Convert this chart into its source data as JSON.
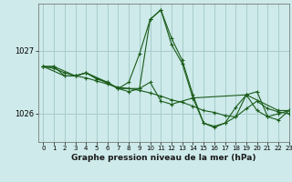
{
  "title": "Graphe pression niveau de la mer (hPa)",
  "bg_color": "#ceeaea",
  "grid_color": "#a8cccc",
  "line_color": "#1a5c1a",
  "xlim": [
    -0.5,
    23
  ],
  "ylim": [
    1025.55,
    1027.75
  ],
  "yticks": [
    1026,
    1027
  ],
  "xticks": [
    0,
    1,
    2,
    3,
    4,
    5,
    6,
    7,
    8,
    9,
    10,
    11,
    12,
    13,
    14,
    15,
    16,
    17,
    18,
    19,
    20,
    21,
    22,
    23
  ],
  "series": [
    {
      "x": [
        0,
        1,
        2,
        3,
        4,
        5,
        6,
        7,
        8,
        9,
        10,
        11,
        12,
        13,
        14,
        15,
        16,
        17,
        18,
        19,
        20,
        21,
        22,
        23
      ],
      "y": [
        1026.75,
        1026.75,
        1026.6,
        1026.6,
        1026.65,
        1026.55,
        1026.5,
        1026.4,
        1026.5,
        1026.95,
        1027.5,
        1027.65,
        1027.2,
        1026.85,
        1026.3,
        1025.85,
        1025.8,
        1025.85,
        1026.1,
        1026.3,
        1026.05,
        1025.95,
        1026.0,
        1026.05
      ]
    },
    {
      "x": [
        0,
        1,
        3,
        4,
        6,
        7,
        8,
        9,
        10,
        11,
        12,
        13,
        14,
        19,
        22,
        23
      ],
      "y": [
        1026.75,
        1026.75,
        1026.6,
        1026.65,
        1026.5,
        1026.4,
        1026.35,
        1026.4,
        1027.5,
        1027.65,
        1027.1,
        1026.8,
        1026.25,
        1026.3,
        1026.05,
        1026.05
      ]
    },
    {
      "x": [
        0,
        2,
        3,
        4,
        7,
        9,
        10,
        11,
        12,
        14,
        15,
        16,
        17,
        18,
        19,
        20,
        21,
        22,
        23
      ],
      "y": [
        1026.75,
        1026.6,
        1026.6,
        1026.65,
        1026.4,
        1026.4,
        1026.5,
        1026.2,
        1026.15,
        1026.25,
        1025.85,
        1025.78,
        1025.85,
        1025.95,
        1026.3,
        1026.35,
        1025.95,
        1025.9,
        1026.05
      ]
    },
    {
      "x": [
        0,
        1,
        2,
        3,
        4,
        5,
        6,
        7,
        8,
        9,
        10,
        11,
        12,
        13,
        14,
        15,
        16,
        17,
        18,
        19,
        20,
        21,
        22,
        23
      ],
      "y": [
        1026.75,
        1026.72,
        1026.65,
        1026.6,
        1026.57,
        1026.52,
        1026.47,
        1026.42,
        1026.4,
        1026.37,
        1026.33,
        1026.28,
        1026.22,
        1026.18,
        1026.12,
        1026.05,
        1026.02,
        1025.97,
        1025.95,
        1026.08,
        1026.2,
        1026.08,
        1026.03,
        1026.0
      ]
    }
  ]
}
